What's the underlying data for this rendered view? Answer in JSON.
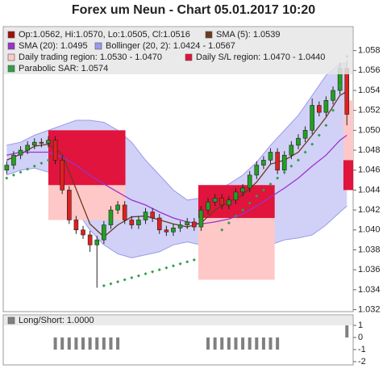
{
  "chart_data": [
    {
      "type": "candlestick",
      "title": "Forex um Neun - Chart 05.01.2017 10:20",
      "name": "Op:1.0562, Hi:1.0570, Lo:1.0505, Cl:1.0516",
      "legend_color": "#a01010",
      "up_color": "#22a022",
      "down_color": "#e02020",
      "xlim": [
        -0.5,
        49.9
      ],
      "ylim": [
        1.0318,
        1.0604
      ],
      "yticks": [
        1.032,
        1.034,
        1.036,
        1.038,
        {
          "value": 1.04,
          "label": "1.040"
        },
        1.042,
        1.044,
        1.046,
        1.048,
        {
          "value": 1.05,
          "label": "1.050"
        },
        1.052,
        1.054,
        1.056,
        1.058
      ],
      "x": [
        0,
        1,
        2,
        3,
        4,
        5,
        6,
        7,
        8,
        9,
        10,
        11,
        12,
        13,
        14,
        15,
        16,
        17,
        18,
        19,
        20,
        21,
        22,
        23,
        24,
        25,
        26,
        27,
        28,
        29,
        30,
        31,
        32,
        33,
        34,
        35,
        36,
        37,
        38,
        39,
        40,
        41,
        42,
        43,
        44,
        45,
        46,
        47,
        48,
        49
      ],
      "open": [
        1.046,
        1.0465,
        1.0475,
        1.048,
        1.0485,
        1.0488,
        1.0487,
        1.049,
        1.047,
        1.044,
        1.041,
        1.04,
        1.0395,
        1.0385,
        1.039,
        1.0405,
        1.042,
        1.0425,
        1.041,
        1.0405,
        1.041,
        1.0418,
        1.0412,
        1.04,
        1.0398,
        1.0402,
        1.0405,
        1.0408,
        1.0403,
        1.042,
        1.0428,
        1.0432,
        1.0425,
        1.043,
        1.0438,
        1.0442,
        1.0455,
        1.0465,
        1.047,
        1.0478,
        1.046,
        1.0475,
        1.0485,
        1.0492,
        1.05,
        1.0525,
        1.0518,
        1.053,
        1.054,
        1.0562
      ],
      "high": [
        1.0469,
        1.0479,
        1.0484,
        1.0489,
        1.0492,
        1.0492,
        1.0494,
        1.0494,
        1.0474,
        1.0444,
        1.0414,
        1.0404,
        1.0399,
        1.0394,
        1.0409,
        1.0424,
        1.0429,
        1.0429,
        1.0414,
        1.0414,
        1.0422,
        1.0422,
        1.0416,
        1.0404,
        1.0406,
        1.0409,
        1.0412,
        1.0412,
        1.0424,
        1.0432,
        1.0436,
        1.0436,
        1.0434,
        1.0442,
        1.0446,
        1.0459,
        1.0469,
        1.0474,
        1.0482,
        1.0482,
        1.0479,
        1.0489,
        1.0496,
        1.0504,
        1.0532,
        1.0529,
        1.0534,
        1.0544,
        1.0568,
        1.057
      ],
      "low": [
        1.0456,
        1.0461,
        1.0471,
        1.0476,
        1.0481,
        1.0483,
        1.0483,
        1.0466,
        1.0436,
        1.0406,
        1.0396,
        1.0391,
        1.0378,
        1.0342,
        1.0386,
        1.0401,
        1.0416,
        1.0406,
        1.0401,
        1.0401,
        1.0406,
        1.0408,
        1.0396,
        1.0394,
        1.0394,
        1.0398,
        1.0401,
        1.0399,
        1.0399,
        1.0416,
        1.0424,
        1.0421,
        1.0421,
        1.0426,
        1.0434,
        1.0438,
        1.0451,
        1.0461,
        1.0466,
        1.0456,
        1.0456,
        1.0471,
        1.0481,
        1.0488,
        1.0496,
        1.0514,
        1.0514,
        1.0526,
        1.0536,
        1.0505
      ],
      "close": [
        1.0465,
        1.0475,
        1.048,
        1.0485,
        1.0488,
        1.0487,
        1.049,
        1.047,
        1.044,
        1.041,
        1.04,
        1.0395,
        1.0385,
        1.039,
        1.0405,
        1.042,
        1.0425,
        1.041,
        1.0405,
        1.041,
        1.0418,
        1.0412,
        1.04,
        1.0398,
        1.0402,
        1.0405,
        1.0408,
        1.0403,
        1.042,
        1.0428,
        1.0432,
        1.0425,
        1.043,
        1.0438,
        1.0442,
        1.0455,
        1.0465,
        1.047,
        1.0478,
        1.046,
        1.0475,
        1.0485,
        1.0492,
        1.05,
        1.0525,
        1.0518,
        1.053,
        1.054,
        1.0562,
        1.0516
      ],
      "overlays": [
        {
          "type": "line",
          "name": "SMA (5): 1.0539",
          "color": "#6b3a1e",
          "x": [
            0,
            2,
            4,
            6,
            8,
            10,
            12,
            14,
            16,
            18,
            20,
            22,
            24,
            26,
            28,
            30,
            32,
            34,
            36,
            38,
            40,
            42,
            44,
            46,
            48,
            49
          ],
          "values": [
            1.047,
            1.0476,
            1.0484,
            1.0486,
            1.0476,
            1.0441,
            1.0406,
            1.0393,
            1.0405,
            1.0413,
            1.0414,
            1.041,
            1.0406,
            1.0403,
            1.0407,
            1.042,
            1.0428,
            1.0435,
            1.0448,
            1.0466,
            1.047,
            1.0478,
            1.0495,
            1.0513,
            1.0535,
            1.0539
          ]
        },
        {
          "type": "line",
          "name": "SMA (20): 1.0495",
          "color": "#9933cc",
          "x": [
            0,
            2,
            4,
            6,
            8,
            10,
            12,
            14,
            16,
            18,
            20,
            22,
            24,
            26,
            28,
            30,
            32,
            34,
            36,
            38,
            40,
            42,
            44,
            46,
            48,
            49
          ],
          "values": [
            1.0475,
            1.0478,
            1.0478,
            1.0478,
            1.0473,
            1.0465,
            1.0455,
            1.0446,
            1.0438,
            1.043,
            1.0425,
            1.0418,
            1.0412,
            1.0408,
            1.0406,
            1.0408,
            1.0411,
            1.0416,
            1.0424,
            1.0433,
            1.0442,
            1.0452,
            1.0464,
            1.0475,
            1.049,
            1.0495
          ]
        },
        {
          "type": "band",
          "name": "Bollinger (20, 2): 1.0424 - 1.0567",
          "color": "#9999ee",
          "x": [
            0,
            2,
            4,
            6,
            8,
            10,
            12,
            14,
            16,
            18,
            20,
            22,
            24,
            26,
            28,
            30,
            32,
            34,
            36,
            38,
            40,
            42,
            44,
            46,
            48,
            49
          ],
          "upper": [
            1.0485,
            1.0488,
            1.0495,
            1.05,
            1.0505,
            1.051,
            1.051,
            1.0508,
            1.05,
            1.0488,
            1.047,
            1.0455,
            1.044,
            1.043,
            1.0432,
            1.044,
            1.0446,
            1.0455,
            1.0468,
            1.0485,
            1.05,
            1.0515,
            1.0535,
            1.0555,
            1.0567,
            1.0567
          ],
          "lower": [
            1.0455,
            1.046,
            1.0462,
            1.0458,
            1.044,
            1.042,
            1.04,
            1.0385,
            1.0376,
            1.0372,
            1.0375,
            1.0378,
            1.0385,
            1.0388,
            1.0385,
            1.0382,
            1.0378,
            1.0376,
            1.0378,
            1.0385,
            1.039,
            1.0392,
            1.0395,
            1.0405,
            1.0418,
            1.0424
          ]
        },
        {
          "type": "dots",
          "name": "Parabolic SAR: 1.0574",
          "color": "#2e9e4a",
          "x": [
            0,
            1,
            2,
            3,
            4,
            5,
            6,
            14,
            15,
            16,
            17,
            18,
            19,
            20,
            21,
            22,
            23,
            24,
            25,
            26,
            27,
            31,
            32,
            33,
            34,
            35,
            36,
            37,
            38,
            39,
            40,
            41,
            42,
            43,
            44,
            45,
            46,
            47,
            48,
            49
          ],
          "values": [
            1.0452,
            1.0455,
            1.0458,
            1.0461,
            1.0464,
            1.0467,
            1.047,
            1.0344,
            1.0346,
            1.0348,
            1.035,
            1.0352,
            1.0354,
            1.0356,
            1.0358,
            1.036,
            1.0362,
            1.0364,
            1.0366,
            1.0368,
            1.037,
            1.04,
            1.0407,
            1.0414,
            1.042,
            1.0427,
            1.0434,
            1.044,
            1.0446,
            1.0452,
            1.0458,
            1.0464,
            1.047,
            1.0478,
            1.0486,
            1.0495,
            1.0505,
            1.052,
            1.0545,
            1.0574
          ]
        }
      ],
      "regions": [
        {
          "type": "region",
          "name": "Daily trading region: 1.0530 - 1.0470",
          "color": "#ffc8c8",
          "x_start": [
            6.0,
            27.6,
            48.5
          ],
          "x_end": [
            17.1,
            38.6,
            49.9
          ],
          "upper": [
            1.05,
            1.0445,
            1.053
          ],
          "lower": [
            1.041,
            1.035,
            1.047
          ]
        },
        {
          "type": "region",
          "name": "Daily S/L region: 1.0470 - 1.0440",
          "color": "#e0143c",
          "x_start": [
            6.0,
            27.6,
            48.5
          ],
          "x_end": [
            17.1,
            38.6,
            49.9
          ],
          "upper": [
            1.05,
            1.0445,
            1.047
          ],
          "lower": [
            1.0445,
            1.0412,
            1.044
          ]
        }
      ]
    },
    {
      "type": "bar",
      "name": "Long/Short: 1.0000",
      "color": "#808080",
      "xlim": [
        -0.5,
        49.9
      ],
      "ylim": [
        -2.27,
        1.87
      ],
      "yticks": [
        1,
        0,
        -1,
        -2
      ],
      "x": [
        7,
        8,
        9,
        10,
        11,
        12,
        13,
        14,
        15,
        16,
        29,
        30,
        31,
        32,
        33,
        34,
        35,
        36,
        37,
        38,
        39,
        49
      ],
      "values": [
        -1,
        -1,
        -1,
        -1,
        -1,
        -1,
        -1,
        -1,
        -1,
        -1,
        -1,
        -1,
        -1,
        -1,
        -1,
        -1,
        -1,
        -1,
        -1,
        -1,
        -1,
        1
      ]
    }
  ]
}
